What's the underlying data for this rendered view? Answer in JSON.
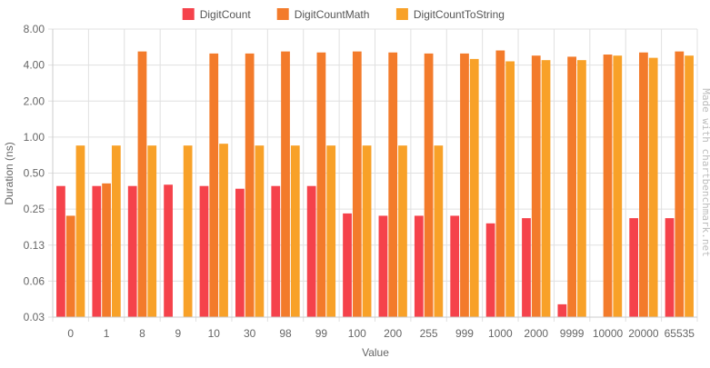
{
  "chart_data": {
    "type": "bar",
    "xlabel": "Value",
    "ylabel": "Duration (ns)",
    "yscale": "log",
    "ylim": [
      0.03,
      8.0
    ],
    "y_ticks": [
      "8.00",
      "4.00",
      "2.00",
      "1.00",
      "0.50",
      "0.25",
      "0.13",
      "0.06",
      "0.03"
    ],
    "y_tick_values": [
      8.0,
      4.0,
      2.0,
      1.0,
      0.5,
      0.25,
      0.125,
      0.0625,
      0.03125
    ],
    "grid": true,
    "legend_position": "top",
    "categories": [
      "0",
      "1",
      "8",
      "9",
      "10",
      "30",
      "98",
      "99",
      "100",
      "200",
      "255",
      "999",
      "1000",
      "2000",
      "9999",
      "10000",
      "20000",
      "65535"
    ],
    "series": [
      {
        "name": "DigitCount",
        "color": "#f5424b",
        "values": [
          0.39,
          0.39,
          0.39,
          0.4,
          0.39,
          0.37,
          0.39,
          0.39,
          0.23,
          0.22,
          0.22,
          0.22,
          0.19,
          0.21,
          0.04,
          null,
          0.21,
          0.21
        ]
      },
      {
        "name": "DigitCountMath",
        "color": "#f37b2b",
        "values": [
          0.22,
          0.41,
          5.2,
          null,
          5.0,
          5.0,
          5.2,
          5.1,
          5.2,
          5.1,
          5.0,
          5.0,
          5.3,
          4.8,
          4.7,
          4.9,
          5.1,
          5.2
        ]
      },
      {
        "name": "DigitCountToString",
        "color": "#f8a128",
        "values": [
          0.85,
          0.85,
          0.85,
          0.85,
          0.88,
          0.85,
          0.85,
          0.85,
          0.85,
          0.85,
          0.85,
          4.5,
          4.3,
          4.4,
          4.4,
          4.8,
          4.6,
          4.8
        ]
      }
    ]
  },
  "watermark": "Made with chartbenchmark.net"
}
